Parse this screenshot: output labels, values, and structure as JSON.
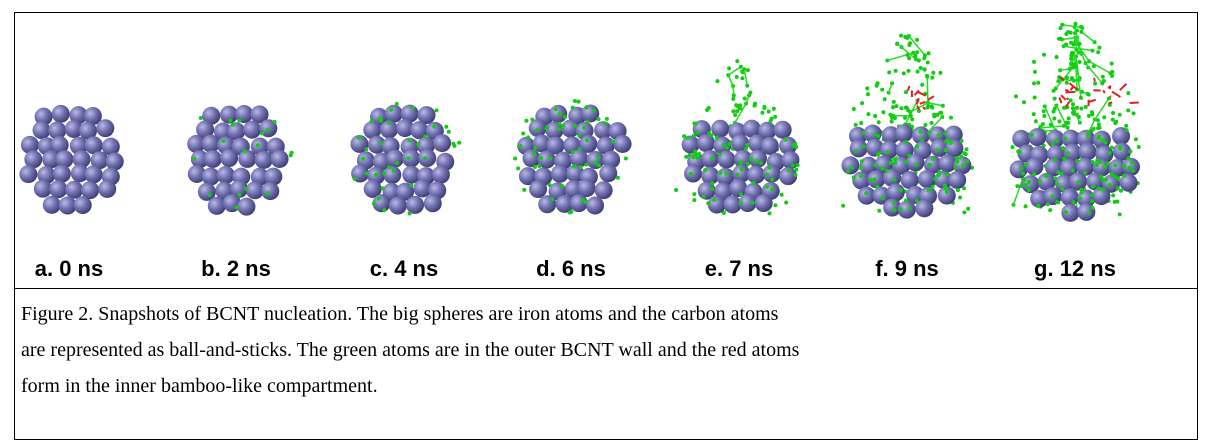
{
  "figure": {
    "panels": [
      {
        "label": "a. 0 ns"
      },
      {
        "label": "b. 2 ns"
      },
      {
        "label": "c. 4 ns"
      },
      {
        "label": "d. 6 ns"
      },
      {
        "label": "e. 7 ns"
      },
      {
        "label": "f. 9 ns"
      },
      {
        "label": "g. 12 ns"
      }
    ],
    "caption": [
      "Figure 2. Snapshots of BCNT nucleation. The big spheres are iron atoms and the carbon atoms",
      "are represented as ball-and-sticks.  The green atoms are in the outer BCNT wall and the red atoms",
      "form in the inner bamboo-like compartment."
    ]
  }
}
